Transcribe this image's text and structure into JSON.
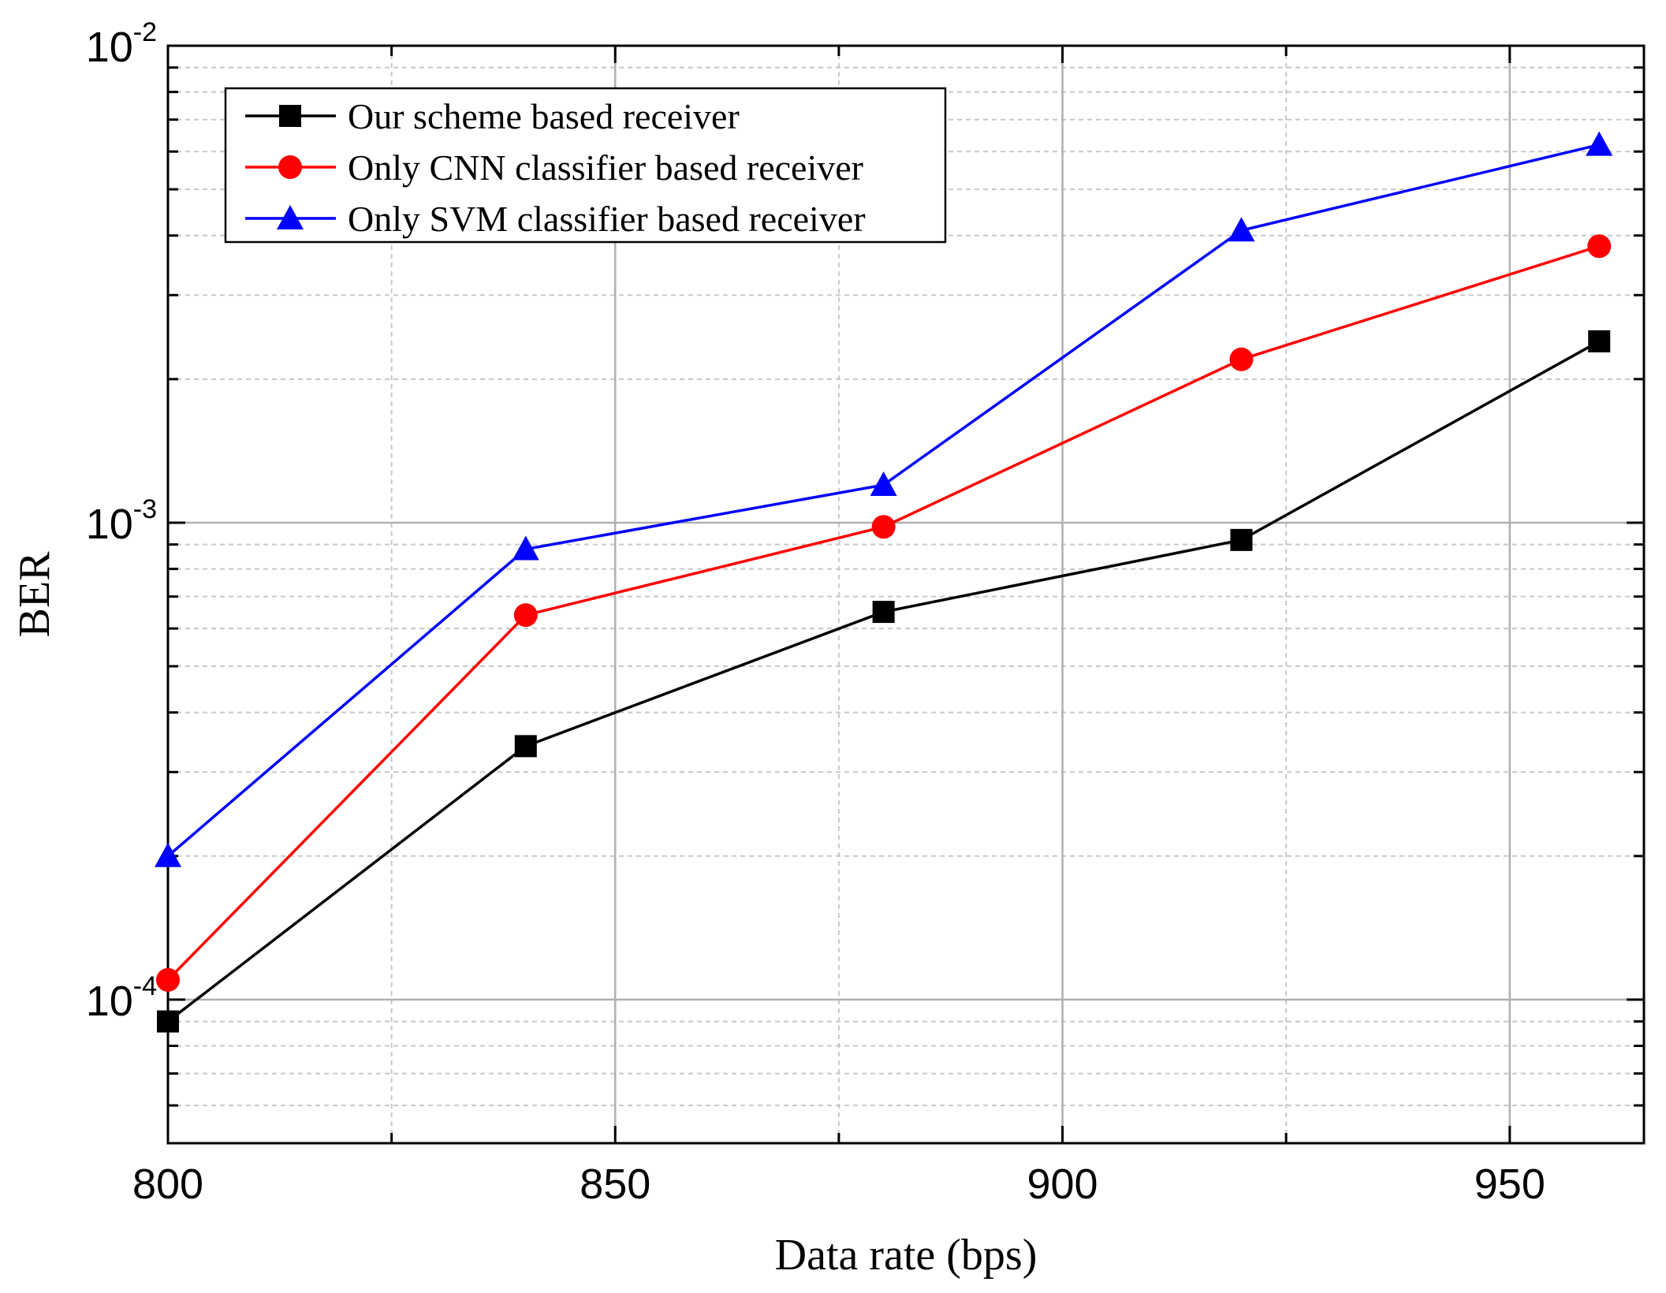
{
  "chart_data": {
    "type": "line",
    "x": [
      800,
      840,
      880,
      920,
      960
    ],
    "series": [
      {
        "name": "Our scheme based receiver",
        "color": "#000000",
        "marker": "square",
        "values": [
          9e-05,
          0.00034,
          0.00065,
          0.00092,
          0.0024
        ]
      },
      {
        "name": "Only CNN classifier based receiver",
        "color": "#ff0000",
        "marker": "circle",
        "values": [
          0.00011,
          0.00064,
          0.00098,
          0.0022,
          0.0038
        ]
      },
      {
        "name": "Only SVM classifier based receiver",
        "color": "#0000ff",
        "marker": "triangle",
        "values": [
          0.0002,
          0.00088,
          0.0012,
          0.0041,
          0.0062
        ]
      }
    ],
    "xlabel": "Data rate (bps)",
    "ylabel": "BER",
    "xlim": [
      800,
      965
    ],
    "ylim": [
      5e-05,
      0.01
    ],
    "yscale": "log",
    "x_ticks": [
      800,
      850,
      900,
      950
    ],
    "x_tick_labels": [
      "800",
      "850",
      "900",
      "950"
    ],
    "y_ticks": [
      0.0001,
      0.001,
      0.01
    ],
    "y_tick_labels": [
      {
        "base": "10",
        "exp": "-4"
      },
      {
        "base": "10",
        "exp": "-3"
      },
      {
        "base": "10",
        "exp": "-2"
      }
    ],
    "grid": true,
    "legend_position": "top-left"
  }
}
